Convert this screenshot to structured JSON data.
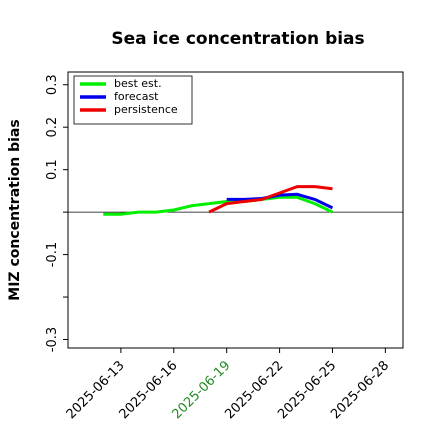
{
  "chart_data": {
    "type": "line",
    "title": "Sea ice concentration bias",
    "xlabel": "",
    "ylabel": "MIZ concentration bias",
    "xlim": [
      "2025-06-10",
      "2025-06-29"
    ],
    "ylim": [
      -0.32,
      0.33
    ],
    "xticks": [
      "2025-06-13",
      "2025-06-16",
      "2025-06-19",
      "2025-06-22",
      "2025-06-25",
      "2025-06-28"
    ],
    "xtick_highlight": {
      "label": "2025-06-19",
      "color": "#228B22"
    },
    "yticks": [
      {
        "value": -0.3,
        "label": "-0.3"
      },
      {
        "value": -0.2,
        "label": ""
      },
      {
        "value": -0.1,
        "label": "-0.1"
      },
      {
        "value": 0.0,
        "label": ""
      },
      {
        "value": 0.1,
        "label": "0.1"
      },
      {
        "value": 0.2,
        "label": "0.2"
      },
      {
        "value": 0.3,
        "label": "0.3"
      }
    ],
    "zero_line": true,
    "legend_position": "top-left",
    "series": [
      {
        "name": "best est.",
        "color": "#00ee00",
        "x": [
          "2025-06-12",
          "2025-06-13",
          "2025-06-14",
          "2025-06-15",
          "2025-06-16",
          "2025-06-17",
          "2025-06-18",
          "2025-06-19",
          "2025-06-20",
          "2025-06-21",
          "2025-06-22",
          "2025-06-23",
          "2025-06-24",
          "2025-06-25"
        ],
        "values": [
          -0.005,
          -0.005,
          0.0,
          0.0,
          0.005,
          0.015,
          0.02,
          0.025,
          0.025,
          0.03,
          0.035,
          0.035,
          0.02,
          0.0
        ]
      },
      {
        "name": "forecast",
        "color": "#0000ee",
        "x": [
          "2025-06-19",
          "2025-06-20",
          "2025-06-21",
          "2025-06-22",
          "2025-06-23",
          "2025-06-24",
          "2025-06-25"
        ],
        "values": [
          0.03,
          0.03,
          0.032,
          0.04,
          0.042,
          0.03,
          0.01
        ]
      },
      {
        "name": "persistence",
        "color": "#ee0000",
        "x": [
          "2025-06-18",
          "2025-06-19",
          "2025-06-20",
          "2025-06-21",
          "2025-06-22",
          "2025-06-23",
          "2025-06-24",
          "2025-06-25"
        ],
        "values": [
          0.0,
          0.02,
          0.025,
          0.03,
          0.045,
          0.06,
          0.06,
          0.055
        ]
      }
    ]
  }
}
